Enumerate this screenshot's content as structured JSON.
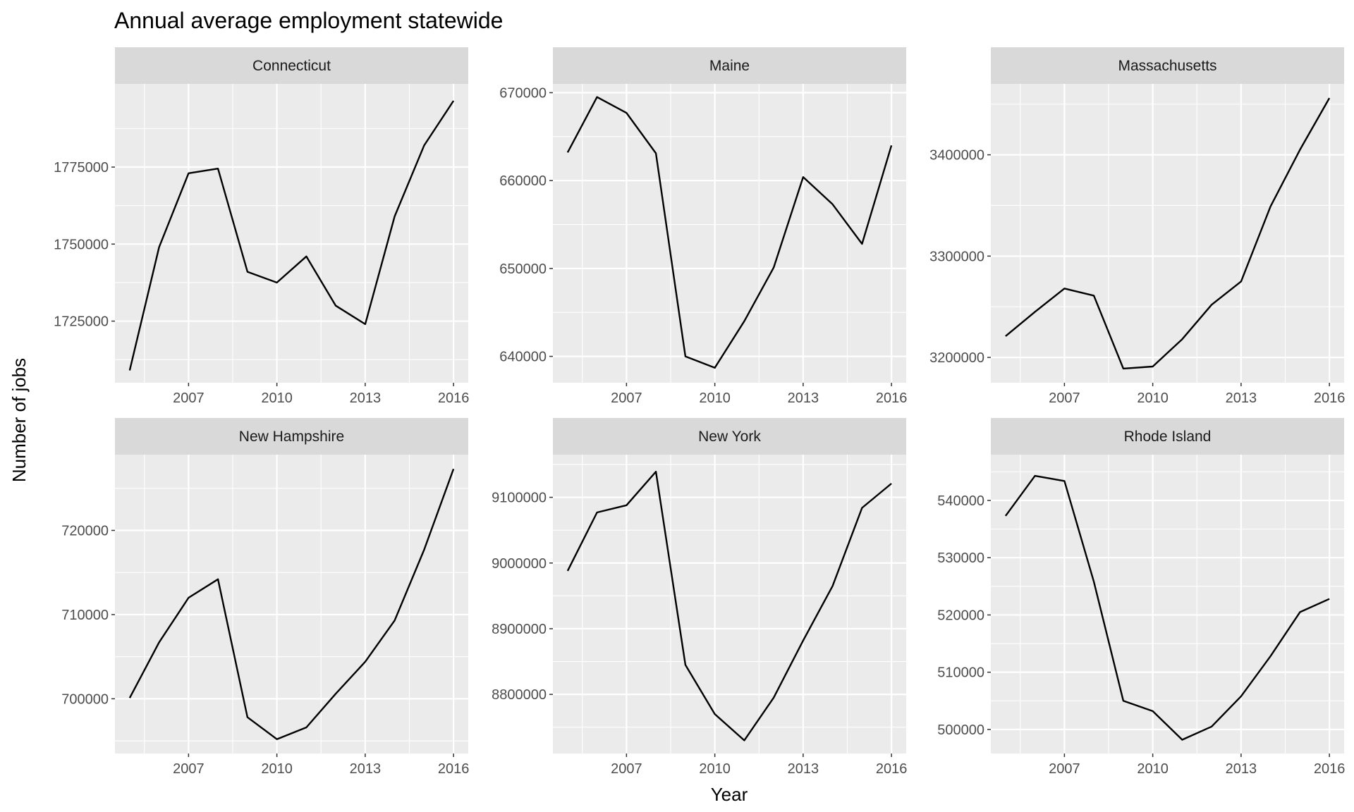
{
  "chart_data": {
    "type": "line",
    "title": "Annual average employment statewide",
    "xlabel": "Year",
    "ylabel": "Number of jobs",
    "grid": true,
    "legend": "none",
    "line_color": "#000000",
    "panel_background": "#ebebeb",
    "strip_background": "#d9d9d9",
    "x": [
      2005,
      2006,
      2007,
      2008,
      2009,
      2010,
      2011,
      2012,
      2013,
      2014,
      2015,
      2016
    ],
    "x_ticks": [
      2007,
      2010,
      2013,
      2016
    ],
    "xlim": [
      2004.5,
      2016.5
    ],
    "panels": [
      {
        "name": "Connecticut",
        "ylim": [
          1705000,
          1802000
        ],
        "y_ticks": [
          1725000,
          1750000,
          1775000
        ],
        "values": [
          1709000,
          1749000,
          1773000,
          1774500,
          1741000,
          1737500,
          1746000,
          1730000,
          1724000,
          1759000,
          1782000,
          1796500
        ]
      },
      {
        "name": "Maine",
        "ylim": [
          637000,
          671000
        ],
        "y_ticks": [
          640000,
          650000,
          660000,
          670000
        ],
        "values": [
          663200,
          669500,
          667700,
          663100,
          640000,
          638700,
          644000,
          650100,
          660400,
          657300,
          652800,
          664000
        ]
      },
      {
        "name": "Massachusetts",
        "ylim": [
          3175000,
          3470000
        ],
        "y_ticks": [
          3200000,
          3300000,
          3400000
        ],
        "values": [
          3221000,
          3245000,
          3268000,
          3261000,
          3189000,
          3191000,
          3218000,
          3252000,
          3275000,
          3349000,
          3405000,
          3456000
        ]
      },
      {
        "name": "New Hampshire",
        "ylim": [
          693500,
          729000
        ],
        "y_ticks": [
          700000,
          710000,
          720000
        ],
        "values": [
          700100,
          706700,
          712000,
          714200,
          697800,
          695200,
          696600,
          700600,
          704400,
          709300,
          717700,
          727300
        ]
      },
      {
        "name": "New York",
        "ylim": [
          8710000,
          9165000
        ],
        "y_ticks": [
          8800000,
          8900000,
          9000000,
          9100000
        ],
        "values": [
          8988000,
          9077000,
          9088000,
          9139000,
          8845000,
          8770000,
          8730000,
          8795000,
          8882000,
          8965000,
          9084000,
          9121000
        ]
      },
      {
        "name": "Rhode Island",
        "ylim": [
          495800,
          548000
        ],
        "y_ticks": [
          500000,
          510000,
          520000,
          530000,
          540000
        ],
        "values": [
          537300,
          544300,
          543400,
          525800,
          505000,
          503200,
          498200,
          500500,
          505800,
          512800,
          520500,
          522800
        ]
      }
    ]
  }
}
